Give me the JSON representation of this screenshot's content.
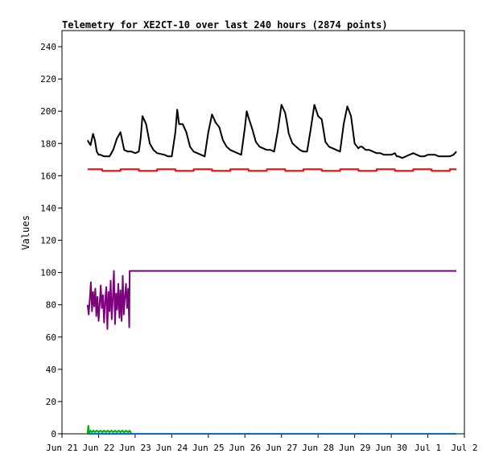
{
  "chart_data": {
    "type": "line",
    "title": "Telemetry for XE2CT-10 over last 240 hours (2874 points)",
    "xlabel": "",
    "ylabel": "Values",
    "ylim": [
      0,
      250
    ],
    "xlim": [
      0,
      11
    ],
    "yticks": [
      0,
      20,
      40,
      60,
      80,
      100,
      120,
      140,
      160,
      180,
      200,
      220,
      240
    ],
    "xtick_labels": [
      "Jun 21",
      "Jun 22",
      "Jun 23",
      "Jun 24",
      "Jun 25",
      "Jun 26",
      "Jun 27",
      "Jun 28",
      "Jun 29",
      "Jun 30",
      "Jul 1",
      "Jul 2"
    ],
    "x_unit": "days since Jun 21",
    "grid": false,
    "legend": "none",
    "series": [
      {
        "color": "#000000",
        "x": [
          0.7,
          0.78,
          0.85,
          0.9,
          0.95,
          1.0,
          1.05,
          1.15,
          1.3,
          1.4,
          1.5,
          1.6,
          1.7,
          1.8,
          1.9,
          2.0,
          2.1,
          2.15,
          2.2,
          2.3,
          2.4,
          2.5,
          2.6,
          2.8,
          2.9,
          3.0,
          3.1,
          3.15,
          3.2,
          3.3,
          3.4,
          3.5,
          3.6,
          3.7,
          3.8,
          3.9,
          4.0,
          4.1,
          4.2,
          4.3,
          4.4,
          4.5,
          4.6,
          4.7,
          4.8,
          4.9,
          5.0,
          5.05,
          5.1,
          5.2,
          5.3,
          5.4,
          5.5,
          5.6,
          5.7,
          5.8,
          5.9,
          6.0,
          6.1,
          6.15,
          6.2,
          6.3,
          6.4,
          6.5,
          6.6,
          6.7,
          6.8,
          6.9,
          7.0,
          7.1,
          7.15,
          7.2,
          7.3,
          7.4,
          7.5,
          7.6,
          7.7,
          7.8,
          7.9,
          8.0,
          8.1,
          8.15,
          8.2,
          8.3,
          8.4,
          8.5,
          8.6,
          8.7,
          8.8,
          8.9,
          9.0,
          9.1,
          9.15,
          9.2,
          9.3,
          9.4,
          9.5,
          9.6,
          9.7,
          9.8,
          9.9,
          10.0,
          10.1,
          10.2,
          10.3,
          10.4,
          10.5,
          10.6,
          10.7,
          10.78
        ],
        "values": [
          182,
          179,
          186,
          182,
          175,
          173,
          173,
          172,
          172,
          176,
          183,
          187,
          176,
          175,
          175,
          174,
          175,
          183,
          197,
          192,
          180,
          176,
          174,
          173,
          172,
          172,
          187,
          201,
          192,
          192,
          187,
          178,
          175,
          174,
          173,
          172,
          187,
          198,
          193,
          190,
          182,
          178,
          176,
          175,
          174,
          173,
          190,
          200,
          196,
          189,
          181,
          178,
          177,
          176,
          176,
          175,
          188,
          204,
          199,
          193,
          186,
          180,
          178,
          176,
          175,
          175,
          189,
          204,
          197,
          195,
          188,
          181,
          178,
          177,
          176,
          175,
          192,
          203,
          197,
          180,
          177,
          178,
          178,
          176,
          176,
          175,
          174,
          174,
          173,
          173,
          173,
          174,
          172,
          172,
          171,
          172,
          173,
          174,
          173,
          172,
          172,
          173,
          173,
          173,
          172,
          172,
          172,
          172,
          173,
          175
        ]
      },
      {
        "color": "#ff0000",
        "x": [
          0.7,
          1.1,
          1.1,
          1.6,
          1.6,
          2.1,
          2.1,
          2.6,
          2.6,
          3.1,
          3.1,
          3.6,
          3.6,
          4.1,
          4.1,
          4.6,
          4.6,
          5.1,
          5.1,
          5.6,
          5.6,
          6.1,
          6.1,
          6.6,
          6.6,
          7.1,
          7.1,
          7.6,
          7.6,
          8.1,
          8.1,
          8.6,
          8.6,
          9.1,
          9.1,
          9.6,
          9.6,
          10.1,
          10.1,
          10.6,
          10.6,
          10.78
        ],
        "values": [
          164,
          164,
          163,
          163,
          164,
          164,
          163,
          163,
          164,
          164,
          163,
          163,
          164,
          164,
          163,
          163,
          164,
          164,
          163,
          163,
          164,
          164,
          163,
          163,
          164,
          164,
          163,
          163,
          164,
          164,
          163,
          163,
          164,
          164,
          163,
          163,
          164,
          164,
          163,
          163,
          164,
          164
        ]
      },
      {
        "color": "#7d007d",
        "x": [
          0.7,
          0.73,
          0.76,
          0.79,
          0.82,
          0.85,
          0.88,
          0.91,
          0.94,
          0.97,
          1.0,
          1.03,
          1.06,
          1.09,
          1.12,
          1.15,
          1.18,
          1.21,
          1.24,
          1.27,
          1.3,
          1.33,
          1.36,
          1.39,
          1.42,
          1.45,
          1.48,
          1.51,
          1.54,
          1.57,
          1.6,
          1.63,
          1.66,
          1.69,
          1.72,
          1.75,
          1.78,
          1.81,
          1.84,
          1.85,
          10.78
        ],
        "values": [
          80,
          74,
          83,
          94,
          76,
          88,
          79,
          90,
          73,
          85,
          70,
          80,
          92,
          78,
          86,
          69,
          82,
          91,
          65,
          88,
          76,
          95,
          71,
          84,
          101,
          68,
          87,
          77,
          93,
          72,
          89,
          70,
          98,
          74,
          85,
          93,
          78,
          90,
          66,
          101,
          101
        ]
      },
      {
        "color": "#00aa00",
        "x": [
          0.7,
          0.72,
          0.74,
          0.78,
          0.82,
          0.86,
          0.9,
          0.95,
          1.0,
          1.05,
          1.1,
          1.15,
          1.2,
          1.25,
          1.3,
          1.35,
          1.4,
          1.45,
          1.5,
          1.55,
          1.6,
          1.65,
          1.7,
          1.75,
          1.8,
          1.85,
          1.9,
          10.78
        ],
        "values": [
          0,
          5,
          0,
          2,
          1,
          2,
          1,
          2,
          1,
          2,
          1,
          2,
          1,
          2,
          1,
          2,
          1,
          2,
          1,
          2,
          1,
          2,
          1,
          2,
          1,
          2,
          0,
          0
        ]
      },
      {
        "color": "#0070c0",
        "x": [
          0.7,
          10.78
        ],
        "values": [
          0,
          0
        ]
      }
    ]
  }
}
